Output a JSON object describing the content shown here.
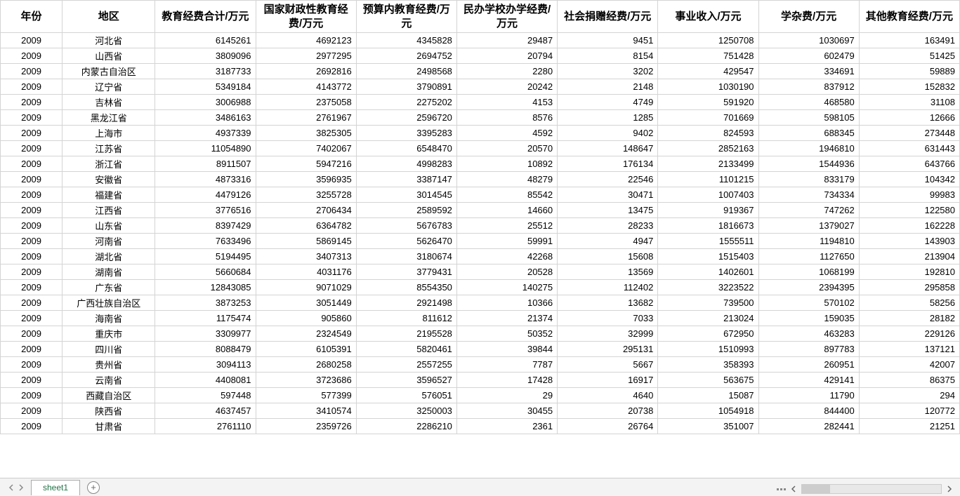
{
  "table": {
    "columns": [
      "年份",
      "地区",
      "教育经费合计/万元",
      "国家财政性教育经费/万元",
      "预算内教育经费/万元",
      "民办学校办学经费/万元",
      "社会捐赠经费/万元",
      "事业收入/万元",
      "学杂费/万元",
      "其他教育经费/万元"
    ],
    "col_classes": [
      "col-year",
      "col-region",
      "col-num",
      "col-num",
      "col-num",
      "col-num",
      "col-num",
      "col-num",
      "col-num",
      "col-num"
    ],
    "rows": [
      [
        "2009",
        "河北省",
        "6145261",
        "4692123",
        "4345828",
        "29487",
        "9451",
        "1250708",
        "1030697",
        "163491"
      ],
      [
        "2009",
        "山西省",
        "3809096",
        "2977295",
        "2694752",
        "20794",
        "8154",
        "751428",
        "602479",
        "51425"
      ],
      [
        "2009",
        "内蒙古自治区",
        "3187733",
        "2692816",
        "2498568",
        "2280",
        "3202",
        "429547",
        "334691",
        "59889"
      ],
      [
        "2009",
        "辽宁省",
        "5349184",
        "4143772",
        "3790891",
        "20242",
        "2148",
        "1030190",
        "837912",
        "152832"
      ],
      [
        "2009",
        "吉林省",
        "3006988",
        "2375058",
        "2275202",
        "4153",
        "4749",
        "591920",
        "468580",
        "31108"
      ],
      [
        "2009",
        "黑龙江省",
        "3486163",
        "2761967",
        "2596720",
        "8576",
        "1285",
        "701669",
        "598105",
        "12666"
      ],
      [
        "2009",
        "上海市",
        "4937339",
        "3825305",
        "3395283",
        "4592",
        "9402",
        "824593",
        "688345",
        "273448"
      ],
      [
        "2009",
        "江苏省",
        "11054890",
        "7402067",
        "6548470",
        "20570",
        "148647",
        "2852163",
        "1946810",
        "631443"
      ],
      [
        "2009",
        "浙江省",
        "8911507",
        "5947216",
        "4998283",
        "10892",
        "176134",
        "2133499",
        "1544936",
        "643766"
      ],
      [
        "2009",
        "安徽省",
        "4873316",
        "3596935",
        "3387147",
        "48279",
        "22546",
        "1101215",
        "833179",
        "104342"
      ],
      [
        "2009",
        "福建省",
        "4479126",
        "3255728",
        "3014545",
        "85542",
        "30471",
        "1007403",
        "734334",
        "99983"
      ],
      [
        "2009",
        "江西省",
        "3776516",
        "2706434",
        "2589592",
        "14660",
        "13475",
        "919367",
        "747262",
        "122580"
      ],
      [
        "2009",
        "山东省",
        "8397429",
        "6364782",
        "5676783",
        "25512",
        "28233",
        "1816673",
        "1379027",
        "162228"
      ],
      [
        "2009",
        "河南省",
        "7633496",
        "5869145",
        "5626470",
        "59991",
        "4947",
        "1555511",
        "1194810",
        "143903"
      ],
      [
        "2009",
        "湖北省",
        "5194495",
        "3407313",
        "3180674",
        "42268",
        "15608",
        "1515403",
        "1127650",
        "213904"
      ],
      [
        "2009",
        "湖南省",
        "5660684",
        "4031176",
        "3779431",
        "20528",
        "13569",
        "1402601",
        "1068199",
        "192810"
      ],
      [
        "2009",
        "广东省",
        "12843085",
        "9071029",
        "8554350",
        "140275",
        "112402",
        "3223522",
        "2394395",
        "295858"
      ],
      [
        "2009",
        "广西壮族自治区",
        "3873253",
        "3051449",
        "2921498",
        "10366",
        "13682",
        "739500",
        "570102",
        "58256"
      ],
      [
        "2009",
        "海南省",
        "1175474",
        "905860",
        "811612",
        "21374",
        "7033",
        "213024",
        "159035",
        "28182"
      ],
      [
        "2009",
        "重庆市",
        "3309977",
        "2324549",
        "2195528",
        "50352",
        "32999",
        "672950",
        "463283",
        "229126"
      ],
      [
        "2009",
        "四川省",
        "8088479",
        "6105391",
        "5820461",
        "39844",
        "295131",
        "1510993",
        "897783",
        "137121"
      ],
      [
        "2009",
        "贵州省",
        "3094113",
        "2680258",
        "2557255",
        "7787",
        "5667",
        "358393",
        "260951",
        "42007"
      ],
      [
        "2009",
        "云南省",
        "4408081",
        "3723686",
        "3596527",
        "17428",
        "16917",
        "563675",
        "429141",
        "86375"
      ],
      [
        "2009",
        "西藏自治区",
        "597448",
        "577399",
        "576051",
        "29",
        "4640",
        "15087",
        "11790",
        "294"
      ],
      [
        "2009",
        "陕西省",
        "4637457",
        "3410574",
        "3250003",
        "30455",
        "20738",
        "1054918",
        "844400",
        "120772"
      ],
      [
        "2009",
        "甘肃省",
        "2761110",
        "2359726",
        "2286210",
        "2361",
        "26764",
        "351007",
        "282441",
        "21251"
      ]
    ]
  },
  "sheet": {
    "active_tab": "sheet1",
    "add_label": "+"
  },
  "colors": {
    "border": "#d4d4d4",
    "text": "#000000",
    "tab_text": "#217346",
    "bottom_bar_bg": "#f3f3f3"
  }
}
